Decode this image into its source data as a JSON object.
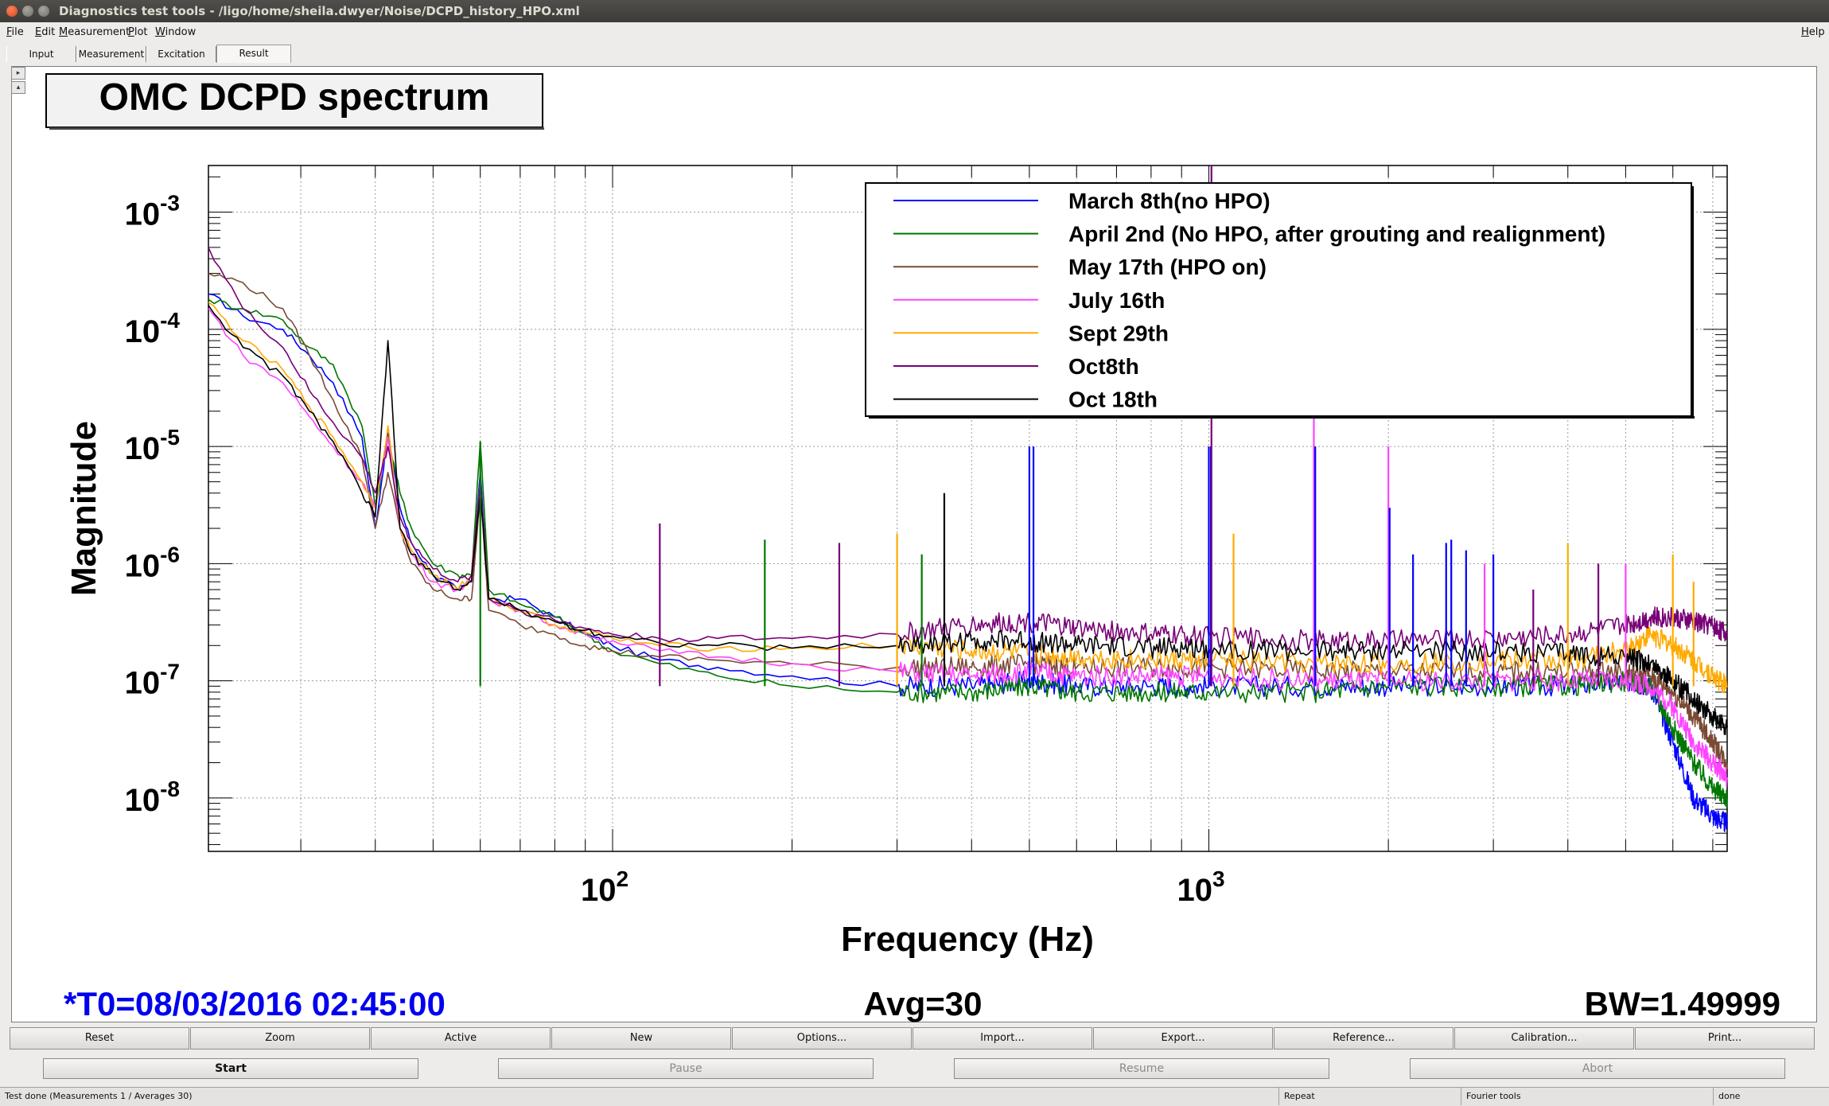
{
  "window": {
    "title": "Diagnostics test tools - /ligo/home/sheila.dwyer/Noise/DCPD_history_HPO.xml"
  },
  "menu": {
    "items": [
      "File",
      "Edit",
      "Measurement",
      "Plot",
      "Window"
    ],
    "help": "Help"
  },
  "tabs": [
    "Input",
    "Measurement",
    "Excitation",
    "Result"
  ],
  "active_tab": "Result",
  "plot": {
    "info_t0": "*T0=08/03/2016 02:45:00",
    "info_avg": "Avg=30",
    "info_bw": "BW=1.49999",
    "info_t0_color": "#0000ee"
  },
  "chart_data": {
    "type": "line",
    "title": "OMC DCPD spectrum",
    "xlabel": "Frequency (Hz)",
    "ylabel": "Magnitude",
    "xscale": "log",
    "yscale": "log",
    "xlim": [
      21,
      7400
    ],
    "ylim": [
      3.5e-09,
      0.0025
    ],
    "grid": true,
    "legend_position": "top-right",
    "x_ticks": [
      {
        "value": 100,
        "base": "10",
        "exp": "2"
      },
      {
        "value": 1000,
        "base": "10",
        "exp": "3"
      }
    ],
    "y_ticks": [
      {
        "value": 0.001,
        "base": "10",
        "exp": "-3"
      },
      {
        "value": 0.0001,
        "base": "10",
        "exp": "-4"
      },
      {
        "value": 1e-05,
        "base": "10",
        "exp": "-5"
      },
      {
        "value": 1e-06,
        "base": "10",
        "exp": "-6"
      },
      {
        "value": 1e-07,
        "base": "10",
        "exp": "-7"
      },
      {
        "value": 1e-08,
        "base": "10",
        "exp": "-8"
      }
    ],
    "series": [
      {
        "name": "March 8th(no HPO)",
        "color": "#0000ff",
        "x": [
          21,
          24,
          28,
          31,
          34,
          38,
          40,
          42,
          44,
          46,
          50,
          55,
          58,
          60,
          62,
          70,
          80,
          90,
          100,
          120,
          150,
          200,
          300,
          400,
          500,
          600,
          800,
          1000,
          1500,
          2000,
          3000,
          4000,
          5000,
          5500,
          6000,
          6500,
          7000,
          7400
        ],
        "y": [
          0.0002,
          0.00013,
          0.0001,
          6e-05,
          3.5e-05,
          1.2e-05,
          2e-06,
          1.3e-05,
          3e-06,
          1.5e-06,
          8e-07,
          6e-07,
          7e-07,
          6e-06,
          5e-07,
          5e-07,
          3.5e-07,
          2.5e-07,
          2e-07,
          1.5e-07,
          1.3e-07,
          1.1e-07,
          9e-08,
          9e-08,
          1e-07,
          9e-08,
          9e-08,
          9e-08,
          9e-08,
          9e-08,
          9e-08,
          9e-08,
          1e-07,
          9e-08,
          3e-08,
          1e-08,
          7e-09,
          6e-09
        ]
      },
      {
        "name": "April 2nd (No HPO, after grouting and realignment)",
        "color": "#007700",
        "x": [
          21,
          24,
          28,
          31,
          34,
          38,
          40,
          42,
          44,
          46,
          50,
          55,
          58,
          60,
          62,
          70,
          80,
          90,
          100,
          120,
          150,
          200,
          300,
          400,
          500,
          600,
          800,
          1000,
          1500,
          2000,
          3000,
          4000,
          5000,
          5500,
          6000,
          6500,
          7000,
          7400
        ],
        "y": [
          0.00018,
          0.00015,
          0.00012,
          7e-05,
          5e-05,
          1.5e-05,
          3e-06,
          1.2e-05,
          4e-06,
          2e-06,
          1e-06,
          8e-07,
          8e-07,
          1.1e-05,
          6e-07,
          4.5e-07,
          3.5e-07,
          2.5e-07,
          1.8e-07,
          1.4e-07,
          1.1e-07,
          9e-08,
          8e-08,
          8e-08,
          9e-08,
          8e-08,
          8e-08,
          8e-08,
          8e-08,
          9e-08,
          9e-08,
          9e-08,
          1e-07,
          9e-08,
          4e-08,
          2e-08,
          1.2e-08,
          1e-08
        ]
      },
      {
        "name": "May 17th (HPO on)",
        "color": "#7a4a35",
        "x": [
          21,
          24,
          28,
          31,
          34,
          38,
          40,
          42,
          44,
          46,
          50,
          55,
          58,
          60,
          62,
          70,
          80,
          90,
          100,
          120,
          150,
          200,
          300,
          400,
          500,
          600,
          800,
          1000,
          1500,
          2000,
          3000,
          4000,
          5000,
          5500,
          6000,
          6500,
          7000,
          7400
        ],
        "y": [
          0.0003,
          0.00025,
          0.00015,
          6e-05,
          2.5e-05,
          8e-06,
          2e-06,
          6e-06,
          2e-06,
          1e-06,
          6e-07,
          5e-07,
          5e-07,
          4e-06,
          4e-07,
          3e-07,
          2.5e-07,
          2e-07,
          1.8e-07,
          1.6e-07,
          1.5e-07,
          1.4e-07,
          1.3e-07,
          1.3e-07,
          1.4e-07,
          1.3e-07,
          1.3e-07,
          1.3e-07,
          1.2e-07,
          1.2e-07,
          1.2e-07,
          1.2e-07,
          1.2e-07,
          1.1e-07,
          8e-08,
          5e-08,
          3e-08,
          2e-08
        ]
      },
      {
        "name": "July 16th",
        "color": "#ff44ff",
        "x": [
          21,
          24,
          28,
          31,
          34,
          38,
          40,
          42,
          44,
          46,
          50,
          55,
          58,
          60,
          62,
          70,
          80,
          90,
          100,
          120,
          150,
          200,
          300,
          400,
          500,
          600,
          800,
          1000,
          1500,
          2000,
          3000,
          4000,
          5000,
          5500,
          6000,
          6500,
          7000,
          7400
        ],
        "y": [
          0.00015,
          6e-05,
          3.5e-05,
          1.8e-05,
          1e-05,
          5e-06,
          3e-06,
          1.2e-05,
          2e-06,
          1.2e-06,
          7e-07,
          6e-07,
          7e-07,
          5e-06,
          5e-07,
          4e-07,
          3e-07,
          2.5e-07,
          2.2e-07,
          1.8e-07,
          1.6e-07,
          1.4e-07,
          1.2e-07,
          1.1e-07,
          1.2e-07,
          1.1e-07,
          1.1e-07,
          1.1e-07,
          1e-07,
          1e-07,
          1e-07,
          1e-07,
          1e-07,
          9e-08,
          6e-08,
          3e-08,
          2e-08,
          1.5e-08
        ]
      },
      {
        "name": "Sept 29th",
        "color": "#ffaa00",
        "x": [
          21,
          24,
          28,
          31,
          34,
          38,
          40,
          42,
          44,
          46,
          50,
          55,
          58,
          60,
          62,
          70,
          80,
          90,
          100,
          120,
          150,
          200,
          300,
          400,
          500,
          600,
          800,
          1000,
          1500,
          2000,
          3000,
          4000,
          5000,
          5500,
          6000,
          6500,
          7000,
          7400
        ],
        "y": [
          0.00017,
          8e-05,
          4.5e-05,
          2.2e-05,
          1.2e-05,
          5e-06,
          3e-06,
          1.5e-05,
          2e-06,
          1.3e-06,
          8e-07,
          6e-07,
          8e-07,
          5e-06,
          5e-07,
          4e-07,
          3e-07,
          2.6e-07,
          2.3e-07,
          2e-07,
          1.9e-07,
          1.9e-07,
          2e-07,
          1.8e-07,
          1.7e-07,
          1.6e-07,
          1.5e-07,
          1.5e-07,
          1.4e-07,
          1.4e-07,
          1.5e-07,
          1.5e-07,
          1.8e-07,
          2.5e-07,
          2e-07,
          1.5e-07,
          1.1e-07,
          9e-08
        ]
      },
      {
        "name": "Oct8th",
        "color": "#770077",
        "x": [
          21,
          24,
          28,
          31,
          34,
          38,
          40,
          42,
          44,
          46,
          50,
          55,
          58,
          60,
          62,
          70,
          80,
          90,
          100,
          120,
          150,
          200,
          300,
          400,
          500,
          600,
          800,
          1000,
          1500,
          2000,
          3000,
          4000,
          5000,
          5500,
          6000,
          6500,
          7000,
          7400
        ],
        "y": [
          0.0005,
          0.00015,
          7e-05,
          3e-05,
          1.6e-05,
          8e-06,
          4e-06,
          1e-05,
          2.5e-06,
          1.5e-06,
          9e-07,
          7e-07,
          8e-07,
          5e-06,
          5e-07,
          4e-07,
          3.3e-07,
          2.8e-07,
          2.5e-07,
          2.3e-07,
          2.3e-07,
          2.3e-07,
          2.5e-07,
          3e-07,
          3.2e-07,
          2.8e-07,
          2.5e-07,
          2.4e-07,
          2.2e-07,
          2.2e-07,
          2.3e-07,
          2.5e-07,
          3e-07,
          3.5e-07,
          3.5e-07,
          3.2e-07,
          3e-07,
          2.5e-07
        ]
      },
      {
        "name": "Oct 18th",
        "color": "#000000",
        "x": [
          21,
          24,
          28,
          31,
          34,
          38,
          40,
          42,
          44,
          46,
          50,
          55,
          58,
          60,
          62,
          70,
          80,
          90,
          100,
          120,
          150,
          200,
          300,
          400,
          500,
          600,
          800,
          1000,
          1500,
          2000,
          3000,
          4000,
          5000,
          5500,
          6000,
          6500,
          7000,
          7400
        ],
        "y": [
          0.00016,
          7e-05,
          4e-05,
          2e-05,
          1.1e-05,
          4e-06,
          2.5e-06,
          8e-05,
          2e-06,
          1.2e-06,
          8e-07,
          6e-07,
          7e-07,
          4e-06,
          5e-07,
          4e-07,
          3.2e-07,
          2.7e-07,
          2.4e-07,
          2.1e-07,
          2e-07,
          1.9e-07,
          2e-07,
          2.2e-07,
          2.2e-07,
          2e-07,
          1.9e-07,
          1.9e-07,
          1.8e-07,
          1.8e-07,
          1.8e-07,
          1.7e-07,
          1.6e-07,
          1.4e-07,
          1e-07,
          7e-08,
          5e-08,
          4e-08
        ]
      }
    ],
    "peaks": [
      {
        "x": 60,
        "y": 1.1e-05,
        "color": "#007700"
      },
      {
        "x": 120,
        "y": 2.2e-06,
        "color": "#770077"
      },
      {
        "x": 180,
        "y": 1.6e-06,
        "color": "#007700"
      },
      {
        "x": 240,
        "y": 1.5e-06,
        "color": "#770077"
      },
      {
        "x": 300,
        "y": 1.8e-06,
        "color": "#ffaa00"
      },
      {
        "x": 330,
        "y": 1.2e-06,
        "color": "#007700"
      },
      {
        "x": 360,
        "y": 4e-06,
        "color": "#000000"
      },
      {
        "x": 500,
        "y": 1e-05,
        "color": "#0000ff"
      },
      {
        "x": 508,
        "y": 1e-05,
        "color": "#0000ff"
      },
      {
        "x": 1000,
        "y": 1e-05,
        "color": "#0000ff"
      },
      {
        "x": 1008,
        "y": 1e-05,
        "color": "#0000ff"
      },
      {
        "x": 1010,
        "y": 0.0025,
        "color": "#770077"
      },
      {
        "x": 1100,
        "y": 1.8e-06,
        "color": "#ffaa00"
      },
      {
        "x": 1500,
        "y": 1.8e-05,
        "color": "#ff44ff"
      },
      {
        "x": 1508,
        "y": 1e-05,
        "color": "#0000ff"
      },
      {
        "x": 2000,
        "y": 1e-05,
        "color": "#ff44ff"
      },
      {
        "x": 2010,
        "y": 3e-06,
        "color": "#0000ff"
      },
      {
        "x": 2200,
        "y": 1.2e-06,
        "color": "#0000ff"
      },
      {
        "x": 2500,
        "y": 1.5e-06,
        "color": "#0000ff"
      },
      {
        "x": 2550,
        "y": 1.6e-06,
        "color": "#0000ff"
      },
      {
        "x": 2700,
        "y": 1.3e-06,
        "color": "#0000ff"
      },
      {
        "x": 2900,
        "y": 1e-06,
        "color": "#ff44ff"
      },
      {
        "x": 3000,
        "y": 1.2e-06,
        "color": "#0000ff"
      },
      {
        "x": 3500,
        "y": 6e-07,
        "color": "#770077"
      },
      {
        "x": 4000,
        "y": 1.5e-06,
        "color": "#ffaa00"
      },
      {
        "x": 4500,
        "y": 1e-06,
        "color": "#770077"
      },
      {
        "x": 5000,
        "y": 1e-06,
        "color": "#ff44ff"
      },
      {
        "x": 6000,
        "y": 1.2e-06,
        "color": "#ffaa00"
      },
      {
        "x": 6500,
        "y": 7e-07,
        "color": "#ffaa00"
      }
    ]
  },
  "buttons": {
    "row1": [
      "Reset",
      "Zoom",
      "Active",
      "New",
      "Options...",
      "Import...",
      "Export...",
      "Reference...",
      "Calibration...",
      "Print..."
    ],
    "start": "Start",
    "pause": "Pause",
    "resume": "Resume",
    "abort": "Abort"
  },
  "status": {
    "message": "Test done (Measurements 1 / Averages 30)",
    "repeat": "Repeat",
    "tools": "Fourier tools",
    "state": "done"
  }
}
